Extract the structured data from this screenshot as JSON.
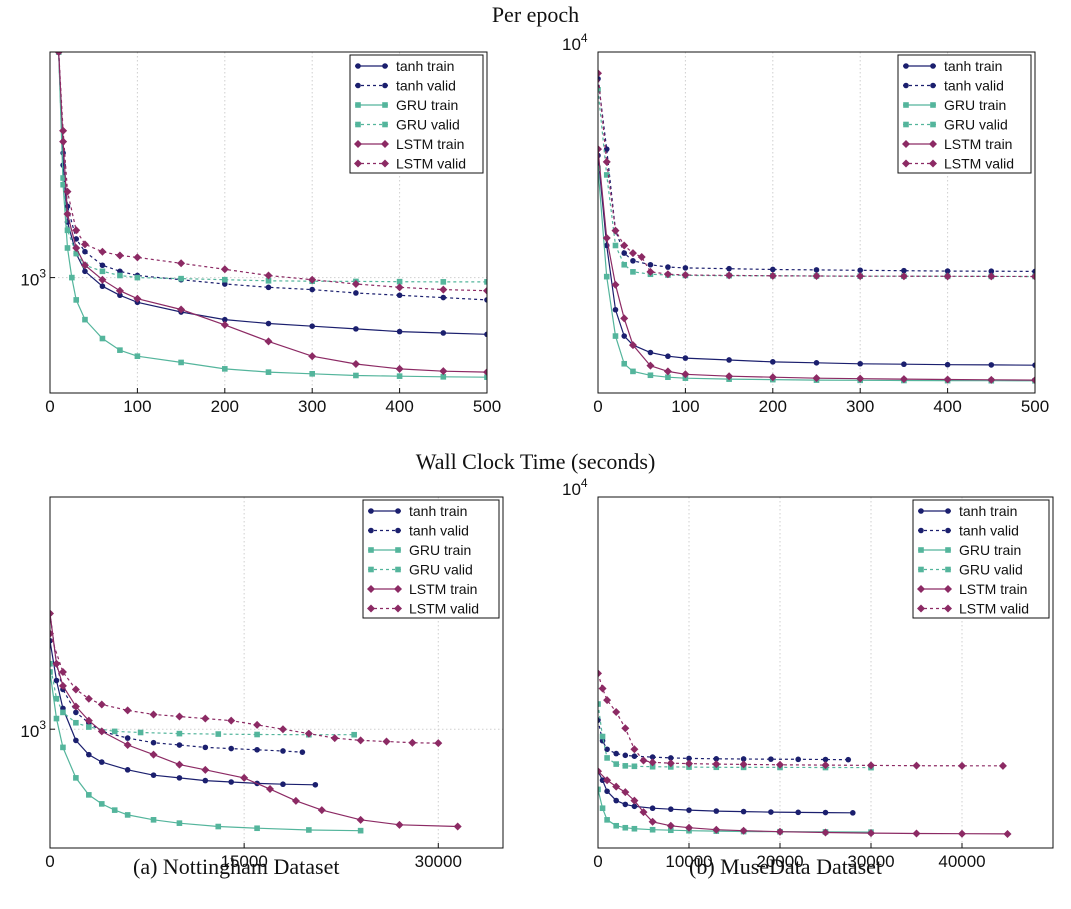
{
  "headers": {
    "per_epoch": "Per epoch",
    "wall_clock": "Wall Clock Time (seconds)"
  },
  "captions": {
    "a": "(a) Nottingham Dataset",
    "b": "(b) MuseData Dataset"
  },
  "style": {
    "colors": {
      "tanh": "#1b1f6e",
      "GRU": "#54b59c",
      "LSTM": "#8c2a64"
    },
    "markers": {
      "tanh": "circle",
      "GRU": "square",
      "LSTM": "diamond"
    }
  },
  "chart_data": [
    {
      "id": "nott-epoch",
      "type": "line",
      "xscale": "linear",
      "yscale": "log",
      "xlim": [
        0,
        500
      ],
      "ylim": [
        580,
        2900
      ],
      "xticks": [
        0,
        100,
        200,
        300,
        400,
        500
      ],
      "xtick_labels": [
        "0",
        "100",
        "200",
        "300",
        "400",
        "500"
      ],
      "yticks": [
        1000
      ],
      "ytick_labels": [
        "10^3"
      ],
      "grid": true,
      "legend": "top-right",
      "series": [
        {
          "name": "tanh train",
          "family": "tanh",
          "dashed": false,
          "x": [
            10,
            15,
            20,
            30,
            40,
            60,
            80,
            100,
            150,
            200,
            250,
            300,
            350,
            400,
            450,
            500
          ],
          "y": [
            2900,
            1700,
            1300,
            1120,
            1030,
            960,
            920,
            890,
            850,
            820,
            805,
            795,
            785,
            775,
            770,
            765
          ]
        },
        {
          "name": "tanh valid",
          "family": "tanh",
          "dashed": true,
          "x": [
            10,
            15,
            20,
            30,
            40,
            60,
            80,
            100,
            150,
            200,
            250,
            300,
            350,
            400,
            450,
            500
          ],
          "y": [
            2900,
            1800,
            1400,
            1200,
            1130,
            1060,
            1030,
            1010,
            990,
            970,
            955,
            945,
            930,
            920,
            910,
            900
          ]
        },
        {
          "name": "GRU train",
          "family": "GRU",
          "dashed": false,
          "x": [
            10,
            15,
            20,
            25,
            30,
            40,
            60,
            80,
            100,
            150,
            200,
            250,
            300,
            350,
            400,
            450,
            500
          ],
          "y": [
            2900,
            1550,
            1150,
            1000,
            900,
            820,
            750,
            710,
            690,
            670,
            650,
            640,
            635,
            630,
            628,
            626,
            625
          ]
        },
        {
          "name": "GRU valid",
          "family": "GRU",
          "dashed": true,
          "x": [
            10,
            15,
            20,
            30,
            40,
            60,
            80,
            100,
            150,
            200,
            250,
            300,
            350,
            400,
            450,
            500
          ],
          "y": [
            2900,
            1600,
            1250,
            1120,
            1060,
            1030,
            1010,
            1000,
            995,
            990,
            985,
            983,
            982,
            981,
            980,
            980
          ]
        },
        {
          "name": "LSTM train",
          "family": "LSTM",
          "dashed": false,
          "x": [
            10,
            15,
            20,
            30,
            40,
            60,
            80,
            100,
            150,
            200,
            250,
            300,
            350,
            400,
            450,
            500
          ],
          "y": [
            2900,
            1900,
            1350,
            1150,
            1060,
            990,
            940,
            905,
            860,
            800,
            740,
            690,
            665,
            650,
            643,
            640
          ]
        },
        {
          "name": "LSTM valid",
          "family": "LSTM",
          "dashed": true,
          "x": [
            10,
            15,
            20,
            30,
            40,
            60,
            80,
            100,
            150,
            200,
            250,
            300,
            350,
            400,
            450,
            500
          ],
          "y": [
            2900,
            2000,
            1500,
            1250,
            1170,
            1130,
            1110,
            1100,
            1070,
            1040,
            1010,
            990,
            970,
            955,
            945,
            940
          ]
        }
      ]
    },
    {
      "id": "muse-epoch",
      "type": "line",
      "xscale": "linear",
      "yscale": "log",
      "xlim": [
        0,
        500
      ],
      "ylim": [
        5200,
        10000
      ],
      "xticks": [
        0,
        100,
        200,
        300,
        400,
        500
      ],
      "xtick_labels": [
        "0",
        "100",
        "200",
        "300",
        "400",
        "500"
      ],
      "yticks": [
        10000
      ],
      "ytick_labels": [
        "10^4"
      ],
      "grid": true,
      "legend": "top-right",
      "series": [
        {
          "name": "tanh train",
          "family": "tanh",
          "dashed": false,
          "x": [
            0,
            10,
            20,
            30,
            40,
            60,
            80,
            100,
            150,
            200,
            250,
            300,
            350,
            400,
            450,
            500
          ],
          "y": [
            8200,
            6900,
            6100,
            5800,
            5700,
            5620,
            5580,
            5560,
            5540,
            5520,
            5510,
            5500,
            5495,
            5490,
            5488,
            5485
          ]
        },
        {
          "name": "tanh valid",
          "family": "tanh",
          "dashed": true,
          "x": [
            0,
            10,
            20,
            30,
            40,
            60,
            80,
            100,
            150,
            200,
            250,
            300,
            350,
            400,
            450,
            500
          ],
          "y": [
            9500,
            8300,
            7100,
            6800,
            6700,
            6650,
            6620,
            6610,
            6600,
            6590,
            6585,
            6580,
            6575,
            6570,
            6568,
            6565
          ]
        },
        {
          "name": "GRU train",
          "family": "GRU",
          "dashed": false,
          "x": [
            0,
            10,
            20,
            30,
            40,
            60,
            80,
            100,
            150,
            200,
            250,
            300,
            350,
            400,
            450,
            500
          ],
          "y": [
            8000,
            6500,
            5800,
            5500,
            5420,
            5380,
            5360,
            5350,
            5340,
            5335,
            5330,
            5328,
            5326,
            5325,
            5324,
            5323
          ]
        },
        {
          "name": "GRU valid",
          "family": "GRU",
          "dashed": true,
          "x": [
            0,
            10,
            20,
            30,
            40,
            60,
            80,
            100,
            150,
            200,
            250,
            300,
            350,
            400,
            450,
            500
          ],
          "y": [
            9300,
            7900,
            6900,
            6650,
            6560,
            6530,
            6520,
            6515,
            6512,
            6510,
            6508,
            6506,
            6505,
            6504,
            6503,
            6502
          ]
        },
        {
          "name": "LSTM train",
          "family": "LSTM",
          "dashed": false,
          "x": [
            0,
            10,
            20,
            30,
            40,
            60,
            80,
            100,
            150,
            200,
            250,
            300,
            350,
            400,
            450,
            500
          ],
          "y": [
            8300,
            7000,
            6400,
            6000,
            5700,
            5480,
            5420,
            5390,
            5370,
            5360,
            5350,
            5345,
            5340,
            5336,
            5333,
            5330
          ]
        },
        {
          "name": "LSTM valid",
          "family": "LSTM",
          "dashed": true,
          "x": [
            0,
            10,
            20,
            30,
            40,
            50,
            60,
            80,
            100,
            150,
            200,
            250,
            300,
            350,
            400,
            450,
            500
          ],
          "y": [
            9600,
            8100,
            7100,
            6900,
            6800,
            6750,
            6560,
            6530,
            6520,
            6515,
            6510,
            6508,
            6506,
            6505,
            6504,
            6503,
            6502
          ]
        }
      ]
    },
    {
      "id": "nott-wall",
      "type": "line",
      "xscale": "linear",
      "yscale": "log",
      "xlim": [
        0,
        35000
      ],
      "ylim": [
        580,
        2900
      ],
      "xticks": [
        0,
        15000,
        30000
      ],
      "xtick_labels": [
        "0",
        "15000",
        "30000"
      ],
      "yticks": [
        1000
      ],
      "ytick_labels": [
        "10^3"
      ],
      "grid": true,
      "legend": "top-right",
      "series": [
        {
          "name": "tanh train",
          "family": "tanh",
          "dashed": false,
          "x": [
            0,
            500,
            1000,
            2000,
            3000,
            4000,
            6000,
            8000,
            10000,
            12000,
            14000,
            16000,
            18000,
            20500
          ],
          "y": [
            1500,
            1250,
            1100,
            950,
            890,
            860,
            830,
            810,
            800,
            790,
            785,
            780,
            777,
            775
          ]
        },
        {
          "name": "tanh valid",
          "family": "tanh",
          "dashed": true,
          "x": [
            0,
            500,
            1000,
            2000,
            3000,
            4000,
            6000,
            8000,
            10000,
            12000,
            14000,
            16000,
            18000,
            19500
          ],
          "y": [
            1700,
            1350,
            1200,
            1080,
            1030,
            990,
            960,
            940,
            930,
            920,
            915,
            910,
            905,
            900
          ]
        },
        {
          "name": "GRU train",
          "family": "GRU",
          "dashed": false,
          "x": [
            0,
            500,
            1000,
            2000,
            3000,
            4000,
            5000,
            6000,
            8000,
            10000,
            13000,
            16000,
            20000,
            24000
          ],
          "y": [
            1300,
            1050,
            920,
            800,
            740,
            710,
            690,
            675,
            660,
            650,
            640,
            635,
            630,
            628
          ]
        },
        {
          "name": "GRU valid",
          "family": "GRU",
          "dashed": true,
          "x": [
            0,
            500,
            1000,
            2000,
            3000,
            5000,
            7000,
            10000,
            13000,
            16000,
            20000,
            23500
          ],
          "y": [
            1350,
            1150,
            1080,
            1030,
            1010,
            990,
            985,
            980,
            978,
            976,
            975,
            975
          ]
        },
        {
          "name": "LSTM train",
          "family": "LSTM",
          "dashed": false,
          "x": [
            0,
            500,
            1000,
            2000,
            3000,
            4000,
            6000,
            8000,
            10000,
            12000,
            15000,
            17000,
            19000,
            21000,
            24000,
            27000,
            31500
          ],
          "y": [
            1700,
            1350,
            1220,
            1110,
            1040,
            990,
            930,
            890,
            850,
            830,
            800,
            760,
            720,
            690,
            660,
            645,
            640
          ]
        },
        {
          "name": "LSTM valid",
          "family": "LSTM",
          "dashed": true,
          "x": [
            0,
            1000,
            2000,
            3000,
            4000,
            6000,
            8000,
            10000,
            12000,
            14000,
            16000,
            18000,
            20000,
            22000,
            24000,
            26000,
            28000,
            30000
          ],
          "y": [
            1550,
            1300,
            1200,
            1150,
            1120,
            1090,
            1070,
            1060,
            1050,
            1040,
            1020,
            1000,
            980,
            960,
            950,
            945,
            940,
            938
          ]
        }
      ]
    },
    {
      "id": "muse-wall",
      "type": "line",
      "xscale": "linear",
      "yscale": "log",
      "xlim": [
        0,
        50000
      ],
      "ylim": [
        5200,
        10000
      ],
      "xticks": [
        0,
        10000,
        20000,
        30000,
        40000
      ],
      "xtick_labels": [
        "0",
        "10000",
        "20000",
        "30000",
        "40000"
      ],
      "yticks": [
        10000
      ],
      "ytick_labels": [
        "10^4"
      ],
      "grid": true,
      "legend": "top-right",
      "series": [
        {
          "name": "tanh train",
          "family": "tanh",
          "dashed": false,
          "x": [
            0,
            500,
            1000,
            2000,
            3000,
            4000,
            6000,
            8000,
            10000,
            13000,
            16000,
            19000,
            22000,
            25000,
            28000
          ],
          "y": [
            6000,
            5900,
            5780,
            5680,
            5640,
            5620,
            5600,
            5590,
            5580,
            5570,
            5565,
            5560,
            5557,
            5555,
            5552
          ]
        },
        {
          "name": "tanh valid",
          "family": "tanh",
          "dashed": true,
          "x": [
            0,
            500,
            1000,
            2000,
            3000,
            4000,
            6000,
            8000,
            10000,
            13000,
            16000,
            19000,
            22000,
            25000,
            27500
          ],
          "y": [
            6600,
            6350,
            6250,
            6200,
            6180,
            6170,
            6160,
            6150,
            6145,
            6140,
            6138,
            6136,
            6134,
            6132,
            6130
          ]
        },
        {
          "name": "GRU train",
          "family": "GRU",
          "dashed": false,
          "x": [
            0,
            500,
            1000,
            2000,
            3000,
            4000,
            6000,
            8000,
            10000,
            13000,
            16000,
            20000,
            25000,
            30000
          ],
          "y": [
            5800,
            5600,
            5480,
            5420,
            5400,
            5390,
            5380,
            5375,
            5370,
            5366,
            5362,
            5360,
            5358,
            5356
          ]
        },
        {
          "name": "GRU valid",
          "family": "GRU",
          "dashed": true,
          "x": [
            0,
            500,
            1000,
            2000,
            3000,
            4000,
            6000,
            8000,
            10000,
            13000,
            16000,
            20000,
            25000,
            30000
          ],
          "y": [
            6800,
            6400,
            6150,
            6080,
            6060,
            6055,
            6050,
            6048,
            6046,
            6044,
            6043,
            6042,
            6041,
            6040
          ]
        },
        {
          "name": "LSTM train",
          "family": "LSTM",
          "dashed": false,
          "x": [
            0,
            1000,
            2000,
            3000,
            4000,
            5000,
            6000,
            8000,
            10000,
            13000,
            16000,
            20000,
            25000,
            30000,
            35000,
            40000,
            45000
          ],
          "y": [
            6000,
            5900,
            5830,
            5770,
            5680,
            5560,
            5460,
            5420,
            5400,
            5380,
            5370,
            5360,
            5352,
            5346,
            5342,
            5340,
            5338
          ]
        },
        {
          "name": "LSTM valid",
          "family": "LSTM",
          "dashed": true,
          "x": [
            0,
            500,
            1000,
            2000,
            3000,
            4000,
            5000,
            6000,
            8000,
            10000,
            13000,
            16000,
            20000,
            25000,
            30000,
            35000,
            40000,
            44500
          ],
          "y": [
            7200,
            7000,
            6850,
            6700,
            6500,
            6250,
            6120,
            6100,
            6090,
            6085,
            6080,
            6076,
            6072,
            6068,
            6065,
            6062,
            6060,
            6060
          ]
        }
      ]
    }
  ]
}
